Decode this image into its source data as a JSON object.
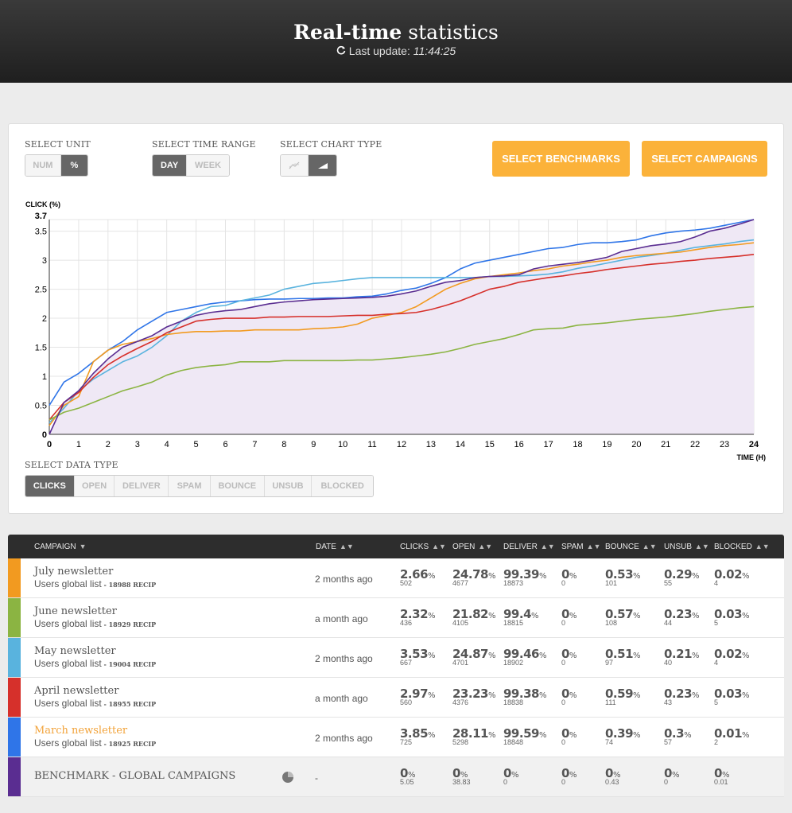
{
  "header": {
    "title_bold": "Real-time",
    "title_rest": " statistics",
    "update_label": "Last update:",
    "update_time": "11:44:25"
  },
  "controls": {
    "unit": {
      "label": "SELECT UNIT",
      "options": [
        "NUM",
        "%"
      ],
      "selected": "%"
    },
    "time_range": {
      "label": "SELECT TIME RANGE",
      "options": [
        "DAY",
        "WEEK"
      ],
      "selected": "DAY"
    },
    "chart_type": {
      "label": "SELECT CHART TYPE",
      "options": [
        "line-chart-icon",
        "area-chart-icon"
      ],
      "selected": "area-chart-icon"
    },
    "benchmarks_button": "SELECT BENCHMARKS",
    "campaigns_button": "SELECT CAMPAIGNS",
    "data_type": {
      "label": "SELECT DATA TYPE",
      "options": [
        "CLICKS",
        "OPEN",
        "DELIVER",
        "SPAM",
        "BOUNCE",
        "UNSUB",
        "BLOCKED"
      ],
      "selected": "CLICKS"
    }
  },
  "chart_data": {
    "type": "line",
    "ylabel": "CLICK (%)",
    "xlabel": "TIME (H)",
    "xlim": [
      0,
      24
    ],
    "ylim": [
      0,
      3.7
    ],
    "x_ticks": [
      0,
      1,
      2,
      3,
      4,
      5,
      6,
      7,
      8,
      9,
      10,
      11,
      12,
      13,
      14,
      15,
      16,
      17,
      18,
      19,
      20,
      21,
      22,
      23,
      24
    ],
    "y_ticks": [
      "0",
      "0.5",
      "1",
      "1.5",
      "2",
      "2.5",
      "3",
      "3.5",
      "3.7"
    ],
    "grid": true,
    "x": [
      0,
      0.5,
      1,
      1.5,
      2,
      2.5,
      3,
      3.5,
      4,
      4.5,
      5,
      5.5,
      6,
      6.5,
      7,
      7.5,
      8,
      8.5,
      9,
      9.5,
      10,
      10.5,
      11,
      11.5,
      12,
      12.5,
      13,
      13.5,
      14,
      14.5,
      15,
      15.5,
      16,
      16.5,
      17,
      17.5,
      18,
      18.5,
      19,
      19.5,
      20,
      20.5,
      21,
      21.5,
      22,
      22.5,
      23,
      23.5,
      24
    ],
    "series": [
      {
        "name": "Benchmark - global campaigns",
        "color": "#5a2d91",
        "values": [
          0,
          0.55,
          0.75,
          1.05,
          1.3,
          1.5,
          1.6,
          1.7,
          1.85,
          1.95,
          2.05,
          2.1,
          2.13,
          2.15,
          2.2,
          2.25,
          2.28,
          2.3,
          2.32,
          2.33,
          2.34,
          2.35,
          2.36,
          2.38,
          2.42,
          2.47,
          2.55,
          2.62,
          2.65,
          2.7,
          2.72,
          2.73,
          2.75,
          2.85,
          2.9,
          2.93,
          2.96,
          3,
          3.05,
          3.15,
          3.2,
          3.25,
          3.28,
          3.32,
          3.4,
          3.5,
          3.55,
          3.62,
          3.7
        ]
      },
      {
        "name": "March newsletter",
        "color": "#2f75e8",
        "values": [
          0.5,
          0.9,
          1.05,
          1.25,
          1.45,
          1.6,
          1.8,
          1.95,
          2.1,
          2.15,
          2.2,
          2.25,
          2.28,
          2.3,
          2.32,
          2.33,
          2.33,
          2.34,
          2.34,
          2.35,
          2.35,
          2.37,
          2.38,
          2.42,
          2.48,
          2.52,
          2.6,
          2.7,
          2.85,
          2.95,
          3.0,
          3.05,
          3.1,
          3.15,
          3.2,
          3.22,
          3.27,
          3.3,
          3.3,
          3.32,
          3.35,
          3.42,
          3.47,
          3.5,
          3.52,
          3.55,
          3.6,
          3.65,
          3.7
        ]
      },
      {
        "name": "May newsletter",
        "color": "#59b3de",
        "values": [
          0.2,
          0.45,
          0.75,
          0.95,
          1.1,
          1.25,
          1.35,
          1.5,
          1.7,
          1.95,
          2.1,
          2.2,
          2.22,
          2.3,
          2.35,
          2.4,
          2.5,
          2.55,
          2.6,
          2.62,
          2.65,
          2.68,
          2.7,
          2.7,
          2.7,
          2.7,
          2.7,
          2.7,
          2.7,
          2.7,
          2.72,
          2.72,
          2.73,
          2.74,
          2.76,
          2.8,
          2.86,
          2.9,
          2.95,
          3.0,
          3.05,
          3.08,
          3.12,
          3.17,
          3.22,
          3.25,
          3.28,
          3.32,
          3.35
        ]
      },
      {
        "name": "July newsletter",
        "color": "#f29a20",
        "values": [
          0.15,
          0.5,
          0.65,
          1.25,
          1.45,
          1.55,
          1.6,
          1.65,
          1.72,
          1.75,
          1.77,
          1.77,
          1.78,
          1.78,
          1.8,
          1.8,
          1.8,
          1.8,
          1.82,
          1.83,
          1.85,
          1.9,
          2.0,
          2.05,
          2.1,
          2.2,
          2.35,
          2.5,
          2.6,
          2.68,
          2.72,
          2.75,
          2.78,
          2.82,
          2.85,
          2.9,
          2.93,
          2.97,
          3.0,
          3.05,
          3.08,
          3.1,
          3.12,
          3.14,
          3.18,
          3.22,
          3.25,
          3.27,
          3.3
        ]
      },
      {
        "name": "April newsletter",
        "color": "#d6302b",
        "values": [
          0.25,
          0.55,
          0.72,
          0.98,
          1.2,
          1.35,
          1.48,
          1.6,
          1.75,
          1.85,
          1.95,
          1.98,
          2.0,
          2.0,
          2.0,
          2.02,
          2.02,
          2.03,
          2.03,
          2.03,
          2.04,
          2.05,
          2.05,
          2.07,
          2.08,
          2.1,
          2.15,
          2.22,
          2.3,
          2.4,
          2.5,
          2.55,
          2.62,
          2.66,
          2.7,
          2.73,
          2.77,
          2.8,
          2.84,
          2.87,
          2.9,
          2.93,
          2.95,
          2.98,
          3.0,
          3.03,
          3.05,
          3.07,
          3.1
        ]
      },
      {
        "name": "June newsletter",
        "color": "#8bb442",
        "values": [
          0.25,
          0.38,
          0.45,
          0.55,
          0.65,
          0.75,
          0.82,
          0.9,
          1.02,
          1.1,
          1.15,
          1.18,
          1.2,
          1.25,
          1.25,
          1.25,
          1.27,
          1.27,
          1.27,
          1.27,
          1.27,
          1.28,
          1.28,
          1.3,
          1.32,
          1.35,
          1.38,
          1.42,
          1.48,
          1.55,
          1.6,
          1.65,
          1.72,
          1.8,
          1.82,
          1.83,
          1.88,
          1.9,
          1.92,
          1.95,
          1.98,
          2.0,
          2.02,
          2.05,
          2.08,
          2.12,
          2.15,
          2.18,
          2.2
        ]
      }
    ]
  },
  "table": {
    "headers": [
      "CAMPAIGN",
      "DATE",
      "CLICKS",
      "OPEN",
      "DELIVER",
      "SPAM",
      "BOUNCE",
      "UNSUB",
      "BLOCKED"
    ],
    "rows": [
      {
        "color": "#f29a20",
        "name": "July newsletter",
        "highlight": false,
        "list": "Users global list",
        "recip": " - 18988 RECIP",
        "date": "2 months ago",
        "cells": [
          [
            "2.66",
            "502"
          ],
          [
            "24.78",
            "4677"
          ],
          [
            "99.39",
            "18873"
          ],
          [
            "0",
            "0"
          ],
          [
            "0.53",
            "101"
          ],
          [
            "0.29",
            "55"
          ],
          [
            "0.02",
            "4"
          ]
        ]
      },
      {
        "color": "#8bb442",
        "name": "June newsletter",
        "highlight": false,
        "list": "Users global list",
        "recip": " - 18929 RECIP",
        "date": "a month ago",
        "cells": [
          [
            "2.32",
            "436"
          ],
          [
            "21.82",
            "4105"
          ],
          [
            "99.4",
            "18815"
          ],
          [
            "0",
            "0"
          ],
          [
            "0.57",
            "108"
          ],
          [
            "0.23",
            "44"
          ],
          [
            "0.03",
            "5"
          ]
        ]
      },
      {
        "color": "#59b3de",
        "name": "May newsletter",
        "highlight": false,
        "list": "Users global list",
        "recip": " - 19004 RECIP",
        "date": "2 months ago",
        "cells": [
          [
            "3.53",
            "667"
          ],
          [
            "24.87",
            "4701"
          ],
          [
            "99.46",
            "18902"
          ],
          [
            "0",
            "0"
          ],
          [
            "0.51",
            "97"
          ],
          [
            "0.21",
            "40"
          ],
          [
            "0.02",
            "4"
          ]
        ]
      },
      {
        "color": "#d6302b",
        "name": "April newsletter",
        "highlight": false,
        "list": "Users global list",
        "recip": " - 18955 RECIP",
        "date": "a month ago",
        "cells": [
          [
            "2.97",
            "560"
          ],
          [
            "23.23",
            "4376"
          ],
          [
            "99.38",
            "18838"
          ],
          [
            "0",
            "0"
          ],
          [
            "0.59",
            "111"
          ],
          [
            "0.23",
            "43"
          ],
          [
            "0.03",
            "5"
          ]
        ]
      },
      {
        "color": "#2f75e8",
        "name": "March newsletter",
        "highlight": true,
        "list": "Users global list",
        "recip": " - 18925 RECIP",
        "date": "2 months ago",
        "cells": [
          [
            "3.85",
            "725"
          ],
          [
            "28.11",
            "5298"
          ],
          [
            "99.59",
            "18848"
          ],
          [
            "0",
            "0"
          ],
          [
            "0.39",
            "74"
          ],
          [
            "0.3",
            "57"
          ],
          [
            "0.01",
            "2"
          ]
        ]
      }
    ],
    "benchmark": {
      "color": "#5a2d91",
      "name": "BENCHMARK - GLOBAL CAMPAIGNS",
      "date": "-",
      "cells": [
        [
          "0",
          "5.05"
        ],
        [
          "0",
          "38.83"
        ],
        [
          "0",
          "0"
        ],
        [
          "0",
          "0"
        ],
        [
          "0",
          "0.43"
        ],
        [
          "0",
          "0"
        ],
        [
          "0",
          "0.01"
        ]
      ]
    }
  }
}
